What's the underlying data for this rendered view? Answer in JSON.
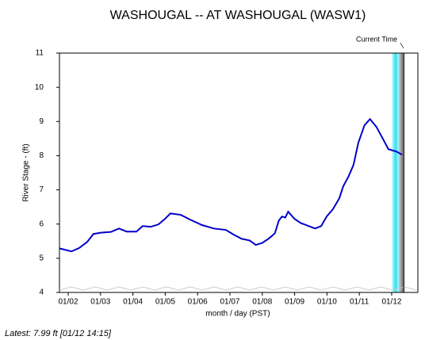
{
  "chart_data": {
    "type": "line",
    "title": "WASHOUGAL -- AT WASHOUGAL  (WASW1)",
    "y_label": "River Stage - (ft)",
    "x_label": "month / day (PST)",
    "annotation": "Current Time",
    "current_time": 12.37,
    "footer": "Latest: 7.99 ft [01/12 14:15]",
    "xlim": [
      1.73,
      12.81
    ],
    "xticks": [
      {
        "value": 2,
        "label": "01/02"
      },
      {
        "value": 3,
        "label": "01/03"
      },
      {
        "value": 4,
        "label": "01/04"
      },
      {
        "value": 5,
        "label": "01/05"
      },
      {
        "value": 6,
        "label": "01/06"
      },
      {
        "value": 7,
        "label": "01/07"
      },
      {
        "value": 8,
        "label": "01/08"
      },
      {
        "value": 9,
        "label": "01/09"
      },
      {
        "value": 10,
        "label": "01/10"
      },
      {
        "value": 11,
        "label": "01/11"
      },
      {
        "value": 12,
        "label": "01/12"
      }
    ],
    "ylim": [
      4,
      11
    ],
    "yticks": [
      4,
      5,
      6,
      7,
      8,
      9,
      10,
      11
    ],
    "series": [
      {
        "name": "River Stage",
        "color": "#0000cc",
        "x": [
          1.73,
          2.1,
          2.34,
          2.59,
          2.78,
          3.03,
          3.32,
          3.57,
          3.81,
          4.11,
          4.3,
          4.55,
          4.79,
          4.99,
          5.16,
          5.48,
          5.77,
          6.14,
          6.5,
          6.87,
          7.12,
          7.36,
          7.61,
          7.8,
          8.0,
          8.22,
          8.39,
          8.51,
          8.61,
          8.71,
          8.8,
          9.0,
          9.19,
          9.44,
          9.63,
          9.82,
          9.99,
          10.18,
          10.38,
          10.5,
          10.67,
          10.82,
          10.97,
          11.16,
          11.33,
          11.53,
          11.73,
          11.9,
          12.15,
          12.32
        ],
        "values": [
          5.29,
          5.2,
          5.3,
          5.48,
          5.71,
          5.75,
          5.77,
          5.87,
          5.78,
          5.78,
          5.94,
          5.92,
          5.99,
          6.15,
          6.31,
          6.27,
          6.13,
          5.97,
          5.87,
          5.83,
          5.69,
          5.57,
          5.52,
          5.39,
          5.45,
          5.59,
          5.73,
          6.1,
          6.22,
          6.19,
          6.36,
          6.15,
          6.03,
          5.94,
          5.87,
          5.94,
          6.22,
          6.43,
          6.75,
          7.1,
          7.4,
          7.73,
          8.38,
          8.89,
          9.07,
          8.84,
          8.49,
          8.19,
          8.12,
          8.03
        ]
      }
    ]
  }
}
